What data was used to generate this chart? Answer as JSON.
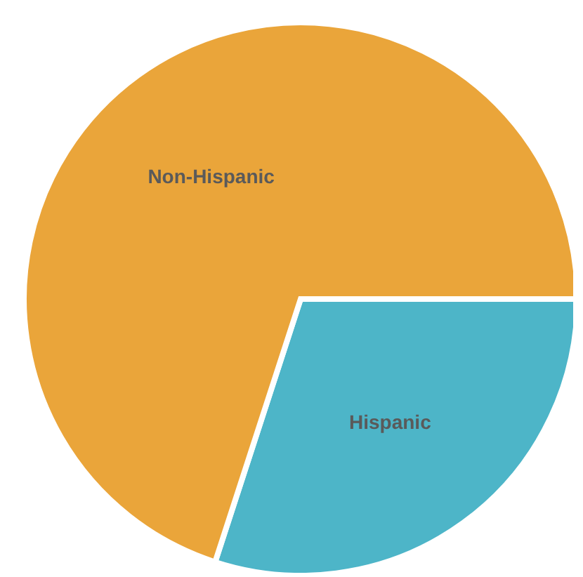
{
  "chart_data": {
    "type": "pie",
    "categories": [
      "Hispanic",
      "Non-Hispanic"
    ],
    "values": [
      30,
      70
    ],
    "colors": [
      "#4db5c8",
      "#eaa53a"
    ]
  }
}
